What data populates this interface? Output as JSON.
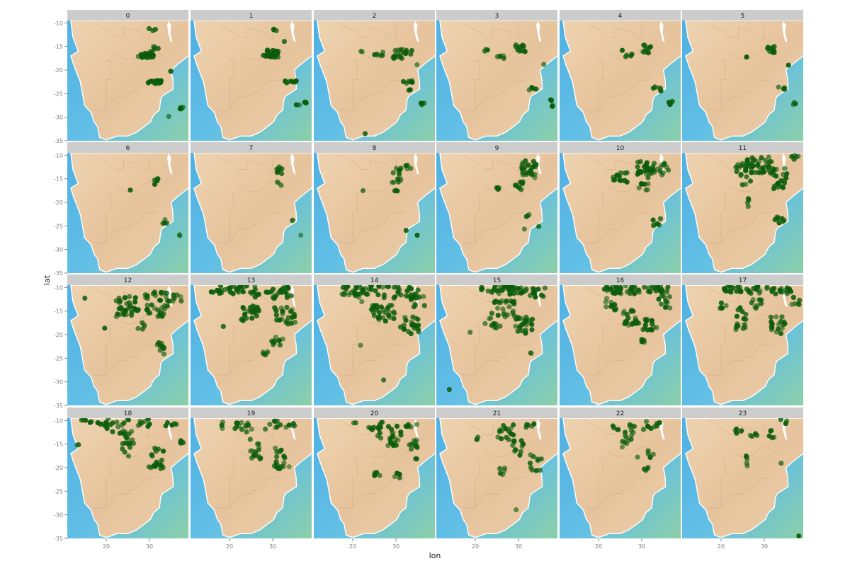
{
  "chart_data": {
    "type": "scatter",
    "facet_labels": [
      "0",
      "1",
      "2",
      "3",
      "4",
      "5",
      "6",
      "7",
      "8",
      "9",
      "10",
      "11",
      "12",
      "13",
      "14",
      "15",
      "16",
      "17",
      "18",
      "19",
      "20",
      "21",
      "22",
      "23"
    ],
    "xlabel": "lon",
    "ylabel": "lat",
    "xlim": [
      11,
      39
    ],
    "ylim": [
      -35,
      -9.5
    ],
    "x_ticks": [
      20,
      30
    ],
    "y_ticks": [
      -10,
      -15,
      -20,
      -25,
      -30,
      -35
    ],
    "point_color": "#0a5c0a",
    "land_color": "#e9c9a3",
    "sea_color": "#58b7e3",
    "strip_color": "#cccccc",
    "grid": false,
    "clusters": [
      [
        [
          30.5,
          -11.5,
          1.0,
          0.4,
          3
        ],
        [
          29.2,
          -16.8,
          2.0,
          0.8,
          30
        ],
        [
          31.5,
          -15.5,
          0.8,
          0.6,
          4
        ],
        [
          31.5,
          -22.5,
          2.0,
          0.5,
          15
        ],
        [
          35,
          -20,
          0.3,
          0.3,
          2
        ],
        [
          37.5,
          -28,
          0.6,
          0.3,
          4
        ],
        [
          34.5,
          -30,
          0.2,
          0.2,
          1
        ]
      ],
      [
        [
          30.5,
          -11.5,
          0.6,
          0.4,
          3
        ],
        [
          29.5,
          -16.5,
          2.0,
          0.9,
          30
        ],
        [
          34,
          -22.5,
          1.6,
          0.4,
          10
        ],
        [
          36.8,
          -27,
          1.5,
          0.5,
          6
        ],
        [
          32.5,
          -14,
          0.2,
          0.2,
          1
        ]
      ],
      [
        [
          31.5,
          -16.5,
          2.5,
          1.2,
          20
        ],
        [
          26,
          -16.5,
          1.2,
          0.5,
          6
        ],
        [
          33,
          -22.5,
          1.5,
          0.4,
          6
        ],
        [
          36,
          -27,
          0.6,
          0.5,
          4
        ],
        [
          33,
          -24.5,
          0.4,
          0.4,
          2
        ],
        [
          23,
          -33.5,
          0.2,
          0.2,
          1
        ],
        [
          22,
          -16,
          0.3,
          0.3,
          2
        ],
        [
          35,
          -19,
          0.2,
          0.2,
          1
        ]
      ],
      [
        [
          30.5,
          -15.5,
          1.3,
          1.0,
          12
        ],
        [
          26,
          -17,
          1.0,
          0.6,
          5
        ],
        [
          22.5,
          -15.8,
          0.4,
          0.3,
          3
        ],
        [
          33.5,
          -24,
          1.2,
          0.6,
          5
        ],
        [
          37.5,
          -27,
          0.6,
          1.0,
          6
        ],
        [
          36,
          -19,
          0.3,
          0.3,
          1
        ]
      ],
      [
        [
          31,
          -15.5,
          1.2,
          1.0,
          10
        ],
        [
          27,
          -17,
          0.8,
          0.5,
          4
        ],
        [
          25.5,
          -16,
          0.2,
          0.2,
          1
        ],
        [
          33.5,
          -24,
          1.2,
          0.5,
          5
        ],
        [
          36.5,
          -27,
          0.8,
          0.5,
          4
        ]
      ],
      [
        [
          31.5,
          -15.5,
          1.0,
          1.0,
          10
        ],
        [
          26,
          -17.2,
          0.3,
          0.2,
          2
        ],
        [
          34,
          -24,
          1.0,
          0.5,
          4
        ],
        [
          37,
          -27,
          0.4,
          0.4,
          3
        ],
        [
          35.5,
          -19,
          0.2,
          0.2,
          1
        ]
      ],
      [
        [
          31.5,
          -15.5,
          0.6,
          0.8,
          5
        ],
        [
          25.5,
          -17.5,
          0.2,
          0.2,
          1
        ],
        [
          34,
          -24,
          1.0,
          0.5,
          4
        ],
        [
          37,
          -27,
          0.3,
          0.3,
          2
        ]
      ],
      [
        [
          31.5,
          -13,
          0.8,
          1.5,
          8
        ],
        [
          31.5,
          -16,
          0.6,
          0.5,
          3
        ],
        [
          34.5,
          -24,
          0.3,
          0.3,
          2
        ],
        [
          36.5,
          -27,
          0.2,
          0.2,
          1
        ]
      ],
      [
        [
          30.5,
          -14,
          1.5,
          2.0,
          12
        ],
        [
          33,
          -12.5,
          1.0,
          0.5,
          4
        ],
        [
          30,
          -17.5,
          0.5,
          0.5,
          3
        ],
        [
          22.5,
          -17.5,
          0.2,
          0.2,
          1
        ],
        [
          32.5,
          -26,
          0.2,
          0.2,
          1
        ],
        [
          35,
          -27,
          0.2,
          0.2,
          1
        ]
      ],
      [
        [
          32.5,
          -13,
          2.0,
          2.0,
          25
        ],
        [
          30,
          -16.5,
          1.2,
          1.0,
          8
        ],
        [
          25,
          -17,
          0.6,
          0.4,
          5
        ],
        [
          32,
          -23,
          0.8,
          0.5,
          3
        ],
        [
          31.5,
          -25.5,
          0.2,
          0.2,
          1
        ],
        [
          34.5,
          -25,
          0.2,
          0.2,
          1
        ]
      ],
      [
        [
          31,
          -13,
          2.5,
          2.0,
          30
        ],
        [
          35,
          -13,
          1.5,
          1.5,
          10
        ],
        [
          25,
          -15,
          2.0,
          1.8,
          15
        ],
        [
          30.5,
          -17,
          1.5,
          1.2,
          8
        ],
        [
          33.5,
          -24,
          1.0,
          1.2,
          6
        ]
      ],
      [
        [
          29,
          -12,
          3.5,
          2.0,
          40
        ],
        [
          33.5,
          -15,
          2.0,
          2.5,
          20
        ],
        [
          25,
          -14,
          2.0,
          2.5,
          18
        ],
        [
          33.5,
          -24,
          1.2,
          1.2,
          8
        ],
        [
          26.5,
          -20,
          0.5,
          1.0,
          4
        ],
        [
          37,
          -10.5,
          1.5,
          0.5,
          5
        ]
      ],
      [
        [
          25,
          -14,
          3.0,
          2.5,
          35
        ],
        [
          31.5,
          -13.5,
          3.0,
          3.0,
          35
        ],
        [
          36,
          -12,
          2.0,
          1.0,
          8
        ],
        [
          32.5,
          -23,
          1.0,
          1.5,
          10
        ],
        [
          28,
          -18,
          1.0,
          1.0,
          5
        ],
        [
          19.5,
          -18.5,
          0.2,
          0.2,
          1
        ],
        [
          15,
          -12,
          0.3,
          0.3,
          1
        ]
      ],
      [
        [
          22,
          -10.5,
          5,
          1.0,
          30
        ],
        [
          30,
          -11,
          5,
          1.5,
          30
        ],
        [
          25,
          -15.5,
          2.5,
          2.0,
          25
        ],
        [
          33,
          -16,
          3.0,
          2.0,
          25
        ],
        [
          31,
          -21,
          1.5,
          1.5,
          10
        ],
        [
          28,
          -24,
          1.5,
          0.4,
          4
        ],
        [
          17,
          -11,
          1.5,
          0.8,
          5
        ],
        [
          18.5,
          -18.5,
          0.3,
          0.3,
          1
        ]
      ],
      [
        [
          22,
          -10.5,
          5,
          1.2,
          30
        ],
        [
          31,
          -11,
          5,
          1.5,
          30
        ],
        [
          27,
          -15.5,
          3.0,
          2.0,
          30
        ],
        [
          33,
          -18,
          2.5,
          2.0,
          20
        ],
        [
          21,
          -12,
          2.0,
          1.5,
          8
        ],
        [
          22,
          -22.5,
          0.3,
          0.3,
          1
        ],
        [
          27,
          -29.5,
          0.2,
          0.2,
          1
        ],
        [
          35,
          -13,
          2.0,
          1.5,
          10
        ]
      ],
      [
        [
          25,
          -10.5,
          5,
          1.0,
          30
        ],
        [
          32,
          -11,
          5,
          1.2,
          25
        ],
        [
          26.5,
          -14.5,
          3.0,
          2.0,
          25
        ],
        [
          31,
          -18,
          2.5,
          2.0,
          25
        ],
        [
          24,
          -17.5,
          2.0,
          1.2,
          10
        ],
        [
          19,
          -19.5,
          0.3,
          0.3,
          1
        ],
        [
          14,
          -31.5,
          0.2,
          0.2,
          1
        ],
        [
          33,
          -24,
          0.3,
          0.3,
          2
        ]
      ],
      [
        [
          25,
          -10.5,
          5,
          1.0,
          30
        ],
        [
          32,
          -10.5,
          5,
          1.0,
          25
        ],
        [
          23,
          -13.5,
          1.5,
          1.5,
          10
        ],
        [
          27.5,
          -16.5,
          2.0,
          2.0,
          20
        ],
        [
          32,
          -18,
          2.0,
          1.5,
          15
        ],
        [
          30.5,
          -21,
          0.8,
          0.8,
          5
        ],
        [
          36,
          -13,
          2.5,
          1.5,
          10
        ]
      ],
      [
        [
          25,
          -10.5,
          5,
          1.0,
          25
        ],
        [
          32,
          -10.5,
          5,
          1.0,
          22
        ],
        [
          24.5,
          -16.5,
          1.5,
          3.0,
          15
        ],
        [
          33,
          -18,
          2.0,
          2.0,
          18
        ],
        [
          28,
          -13.5,
          1.5,
          1.5,
          8
        ],
        [
          20,
          -14,
          1.5,
          0.8,
          5
        ],
        [
          37.5,
          -13,
          1.5,
          1.0,
          6
        ]
      ],
      [
        [
          17,
          -10.5,
          4,
          0.8,
          12
        ],
        [
          22.5,
          -11,
          3,
          2,
          15
        ],
        [
          25,
          -15,
          1.5,
          3.0,
          18
        ],
        [
          31.5,
          -18,
          2.0,
          2.5,
          20
        ],
        [
          28.5,
          -10.5,
          2.0,
          1.0,
          8
        ],
        [
          35,
          -10.5,
          1.5,
          0.8,
          5
        ],
        [
          13.5,
          -15,
          0.3,
          0.3,
          2
        ],
        [
          37.5,
          -14.5,
          1.0,
          1.0,
          4
        ]
      ],
      [
        [
          23.5,
          -11.5,
          2,
          1.5,
          10
        ],
        [
          26,
          -16,
          1.5,
          3.0,
          15
        ],
        [
          32,
          -18,
          2.0,
          2.5,
          18
        ],
        [
          30,
          -11,
          2.0,
          1.0,
          8
        ],
        [
          20,
          -11,
          2.0,
          0.8,
          6
        ],
        [
          34,
          -11,
          2.0,
          0.5,
          5
        ]
      ],
      [
        [
          25.5,
          -12,
          2,
          2,
          15
        ],
        [
          29.5,
          -13,
          2,
          3,
          18
        ],
        [
          34,
          -16,
          1.0,
          2.5,
          12
        ],
        [
          25.5,
          -21,
          1.0,
          0.8,
          6
        ],
        [
          30.5,
          -21.5,
          1.0,
          0.8,
          4
        ],
        [
          33.5,
          -11,
          2.0,
          0.5,
          6
        ],
        [
          20.5,
          -10.5,
          0.4,
          0.3,
          2
        ]
      ],
      [
        [
          27,
          -12.5,
          2,
          2,
          15
        ],
        [
          30,
          -16,
          1.5,
          2.5,
          12
        ],
        [
          34,
          -19,
          1.5,
          2.0,
          10
        ],
        [
          26,
          -21,
          1.0,
          1.0,
          6
        ],
        [
          33,
          -11,
          1.5,
          0.5,
          5
        ],
        [
          20.5,
          -14,
          0.4,
          0.6,
          3
        ],
        [
          29.5,
          -29,
          0.2,
          0.2,
          1
        ]
      ],
      [
        [
          27.5,
          -12.5,
          1.5,
          2,
          12
        ],
        [
          32.5,
          -11,
          2.5,
          1,
          10
        ],
        [
          24,
          -11.5,
          0.8,
          0.8,
          4
        ],
        [
          26,
          -15,
          0.6,
          1.0,
          4
        ],
        [
          32,
          -17,
          1.0,
          1.0,
          5
        ],
        [
          31,
          -20,
          0.8,
          0.8,
          4
        ],
        [
          29,
          -18,
          0.3,
          0.3,
          1
        ]
      ],
      [
        [
          24,
          -12.5,
          1,
          0.8,
          6
        ],
        [
          27.5,
          -13,
          1,
          0.5,
          4
        ],
        [
          32,
          -13,
          1.0,
          1.0,
          5
        ],
        [
          26,
          -18.5,
          0.6,
          1.5,
          5
        ],
        [
          34.5,
          -10.2,
          0.8,
          0.6,
          4
        ],
        [
          34,
          -19,
          0.2,
          0.2,
          1
        ],
        [
          38,
          -34.5,
          0.2,
          0.2,
          1
        ]
      ]
    ]
  }
}
